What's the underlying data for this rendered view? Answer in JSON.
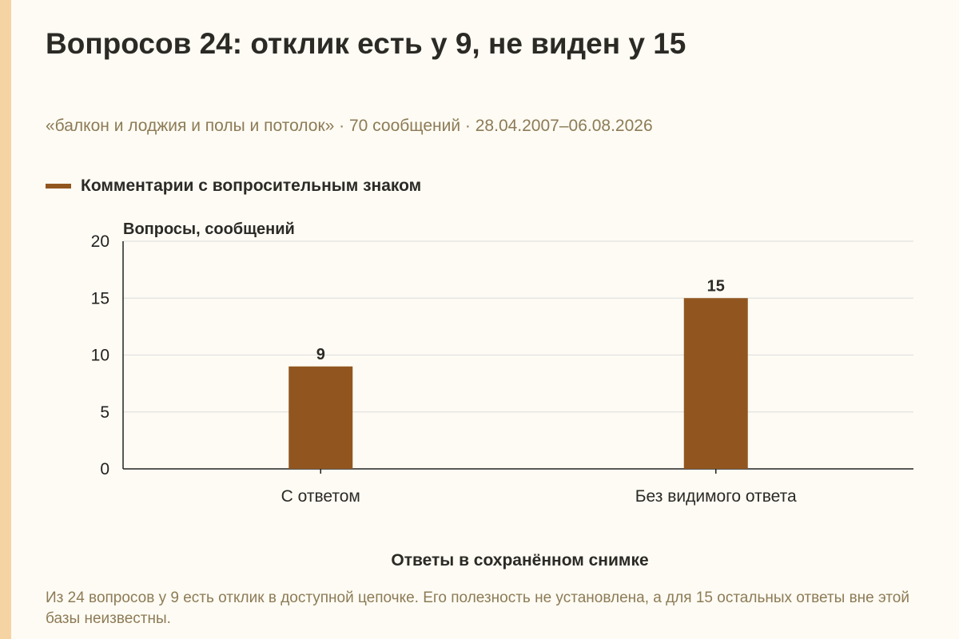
{
  "title": "Вопросов 24: отклик есть у 9, не виден у 15",
  "subtitle": "«балкон и лоджия и полы и потолок» · 70 сообщений · 28.04.2007–06.08.2026",
  "footnote": "Из 24 вопросов у 9 есть отклик в доступной цепочке. Его полезность не установлена, а для 15 остальных ответы вне этой базы неизвестны.",
  "colors": {
    "background": "#fdfbf3",
    "accent_stripe": "#f5d3a3",
    "bar": "#91561f",
    "title": "#2b2a25",
    "muted_text": "#8d7b57",
    "grid": "#dcdcdc",
    "axis": "#222222"
  },
  "chart_data": {
    "type": "bar",
    "title": "Вопросов 24: отклик есть у 9, не виден у 15",
    "xlabel": "Ответы в сохранённом снимке",
    "ylabel": "Вопросы, сообщений",
    "categories": [
      "С ответом",
      "Без видимого ответа"
    ],
    "series": [
      {
        "name": "Комментарии с вопросительным знаком",
        "values": [
          9,
          15
        ]
      }
    ],
    "data_labels": [
      "9",
      "15"
    ],
    "ylim": [
      0,
      20
    ],
    "yticks": [
      "0",
      "5",
      "10",
      "15",
      "20"
    ],
    "grid": true,
    "legend": "top-left"
  }
}
